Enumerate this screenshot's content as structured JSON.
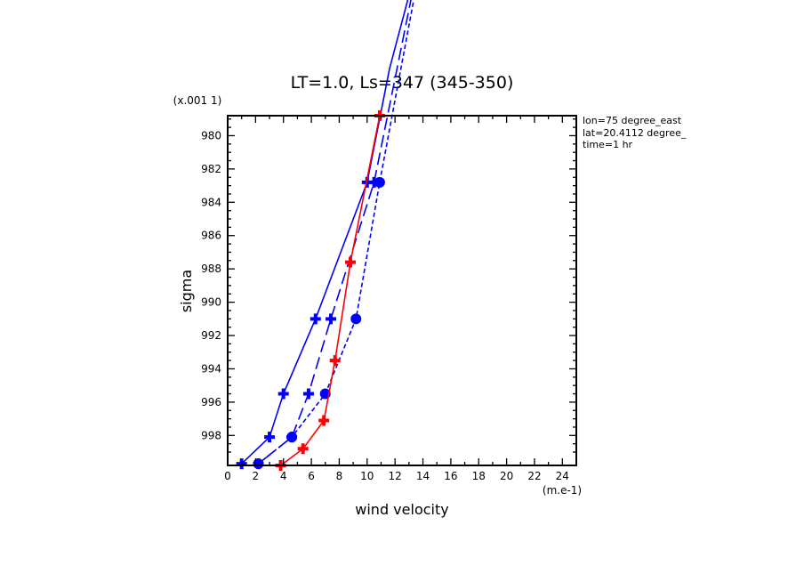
{
  "chart_data": {
    "type": "line",
    "title": "LT=1.0, Ls=347 (345-350)",
    "xlabel": "wind velocity",
    "ylabel": "sigma",
    "x_unit": "(m.e-1)",
    "y_scale": "(x.001 1)",
    "xlim": [
      0,
      25
    ],
    "ylim_thousandths": [
      999.8,
      978.8
    ],
    "xticks": [
      0,
      2,
      4,
      6,
      8,
      10,
      12,
      14,
      16,
      18,
      20,
      22,
      24
    ],
    "yticks": [
      980,
      982,
      984,
      986,
      988,
      990,
      992,
      994,
      996,
      998
    ],
    "annotations": [
      "lon=75 degree_east",
      "lat=20.4112 degree_",
      "time=1 hr"
    ],
    "series": [
      {
        "color": "#0000ff",
        "dash": "solid",
        "marker": "cross",
        "points": [
          [
            11.6,
            976.0
          ],
          [
            10.0,
            982.8
          ],
          [
            6.3,
            991.0
          ],
          [
            4.0,
            995.5
          ],
          [
            3.0,
            998.1
          ],
          [
            1.0,
            999.7
          ]
        ],
        "line_end_x": 13.0
      },
      {
        "color": "#0000ff",
        "dash": "longdash",
        "marker": "cross",
        "points": [
          [
            10.5,
            982.8
          ],
          [
            7.4,
            991.0
          ],
          [
            5.8,
            995.5
          ],
          [
            4.6,
            998.1
          ],
          [
            2.2,
            999.7
          ]
        ],
        "line_end_x": 13.2
      },
      {
        "color": "#0000ff",
        "dash": "shortdash",
        "marker": "circle",
        "points": [
          [
            10.9,
            982.8
          ],
          [
            9.2,
            991.0
          ],
          [
            7.0,
            995.5
          ],
          [
            4.6,
            998.1
          ],
          [
            2.2,
            999.7
          ]
        ],
        "line_end_x": 13.4
      },
      {
        "color": "#ff0000",
        "dash": "solid",
        "marker": "cross",
        "points": [
          [
            10.9,
            978.8
          ],
          [
            8.8,
            987.6
          ],
          [
            7.7,
            993.5
          ],
          [
            6.9,
            997.1
          ],
          [
            5.4,
            998.8
          ],
          [
            3.8,
            999.8
          ]
        ]
      }
    ]
  }
}
